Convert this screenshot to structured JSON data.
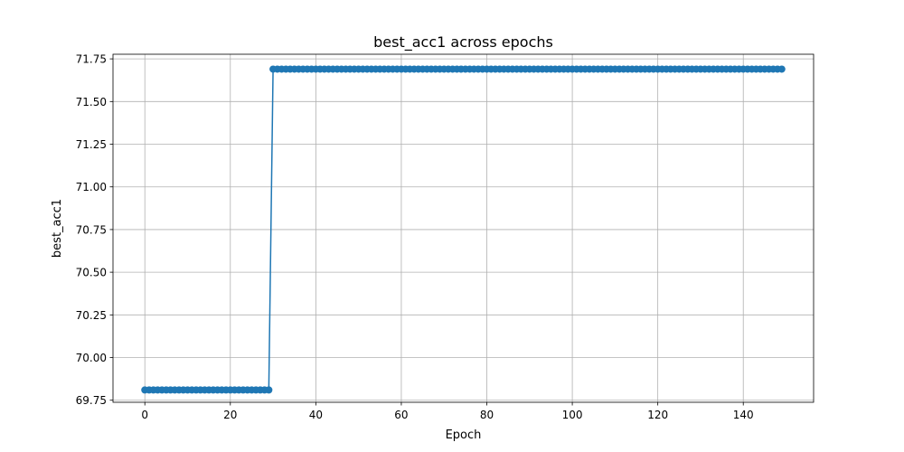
{
  "chart_data": {
    "type": "line",
    "title": "best_acc1 across epochs",
    "xlabel": "Epoch",
    "ylabel": "best_acc1",
    "xlim": [
      -7.45,
      156.45
    ],
    "ylim": [
      69.7379,
      71.7771
    ],
    "xticks": [
      0,
      20,
      40,
      60,
      80,
      100,
      120,
      140
    ],
    "xtick_labels": [
      "0",
      "20",
      "40",
      "60",
      "80",
      "100",
      "120",
      "140"
    ],
    "yticks": [
      69.75,
      70.0,
      70.25,
      70.5,
      70.75,
      71.0,
      71.25,
      71.5,
      71.75
    ],
    "ytick_labels": [
      "69.75",
      "70.00",
      "70.25",
      "70.50",
      "70.75",
      "71.00",
      "71.25",
      "71.50",
      "71.75"
    ],
    "grid": true,
    "marker": "circle",
    "series": [
      {
        "color": "#1f77b4",
        "segments": [
          {
            "x_start": 0,
            "x_end": 29,
            "y": 69.81
          },
          {
            "x_start": 30,
            "x_end": 149,
            "y": 71.69
          }
        ]
      }
    ]
  }
}
